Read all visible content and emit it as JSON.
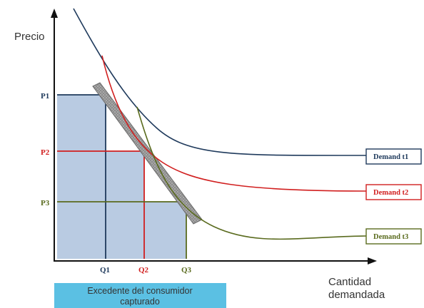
{
  "y_axis_label": "Precio",
  "x_axis_label": [
    "Cantidad",
    "demandada"
  ],
  "price_labels": [
    "P1",
    "P2",
    "P3"
  ],
  "quantity_labels": [
    "Q1",
    "Q2",
    "Q3"
  ],
  "demand_curves": [
    {
      "label": "Demand t1",
      "color": "#1f3a5c"
    },
    {
      "label": "Demand t2",
      "color": "#d11f1f"
    },
    {
      "label": "Demand t3",
      "color": "#5a6b1e"
    }
  ],
  "surplus_label": [
    "Excedente del consumidor",
    "capturado"
  ],
  "colors": {
    "axis": "#111111",
    "surplus_fill": "#b9cbe2",
    "banner_fill": "#5bc0e3",
    "price_step_band": "#9a9a9a"
  }
}
